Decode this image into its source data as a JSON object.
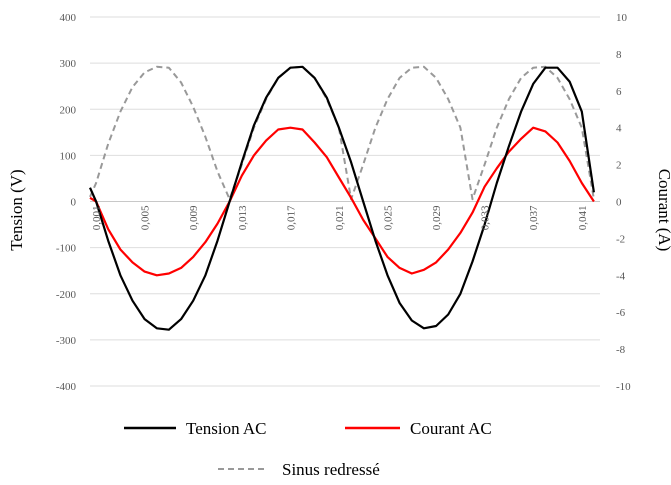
{
  "chart_data": {
    "type": "line",
    "title": "",
    "ylabel_left": "Tension (V)",
    "ylabel_right": "Courant (A)",
    "x_range": [
      0.0005,
      0.0425
    ],
    "x_ticks": [
      "0,001",
      "0,005",
      "0,009",
      "0,013",
      "0,017",
      "0,021",
      "0,025",
      "0,029",
      "0,033",
      "0,037",
      "0,041"
    ],
    "x_tick_values": [
      0.001,
      0.005,
      0.009,
      0.013,
      0.017,
      0.021,
      0.025,
      0.029,
      0.033,
      0.037,
      0.041
    ],
    "y_left": {
      "range": [
        -400,
        400
      ],
      "ticks": [
        400,
        300,
        200,
        100,
        0,
        -100,
        -200,
        -300,
        -400
      ]
    },
    "y_right": {
      "range": [
        -10,
        10
      ],
      "ticks": [
        10,
        8,
        6,
        4,
        2,
        0,
        -2,
        -4,
        -6,
        -8,
        -10
      ]
    },
    "grid": "horizontal",
    "legend_position": "bottom",
    "series": [
      {
        "name": "Tension AC",
        "axis": "left",
        "color": "#000000",
        "x": [
          0.0005,
          0.001,
          0.002,
          0.003,
          0.004,
          0.005,
          0.006,
          0.007,
          0.008,
          0.009,
          0.01,
          0.011,
          0.012,
          0.013,
          0.014,
          0.015,
          0.016,
          0.017,
          0.018,
          0.019,
          0.02,
          0.021,
          0.022,
          0.023,
          0.024,
          0.025,
          0.026,
          0.027,
          0.028,
          0.029,
          0.03,
          0.031,
          0.032,
          0.033,
          0.034,
          0.035,
          0.036,
          0.037,
          0.038,
          0.039,
          0.04,
          0.041,
          0.042
        ],
        "values": [
          30,
          0,
          -85,
          -160,
          -215,
          -255,
          -275,
          -278,
          -255,
          -215,
          -160,
          -85,
          0,
          85,
          165,
          225,
          268,
          290,
          292,
          268,
          225,
          160,
          85,
          0,
          -85,
          -160,
          -220,
          -258,
          -275,
          -270,
          -245,
          -200,
          -130,
          -50,
          40,
          120,
          195,
          255,
          290,
          290,
          260,
          195,
          20
        ]
      },
      {
        "name": "Courant AC",
        "axis": "right",
        "color": "#ff0000",
        "x": [
          0.0005,
          0.001,
          0.002,
          0.003,
          0.004,
          0.005,
          0.006,
          0.007,
          0.008,
          0.009,
          0.01,
          0.011,
          0.012,
          0.013,
          0.014,
          0.015,
          0.016,
          0.017,
          0.018,
          0.019,
          0.02,
          0.021,
          0.022,
          0.023,
          0.024,
          0.025,
          0.026,
          0.027,
          0.028,
          0.029,
          0.03,
          0.031,
          0.032,
          0.033,
          0.034,
          0.035,
          0.036,
          0.037,
          0.038,
          0.039,
          0.04,
          0.041,
          0.042
        ],
        "values": [
          0.2,
          0,
          -1.5,
          -2.6,
          -3.3,
          -3.8,
          -4.0,
          -3.9,
          -3.6,
          -3.0,
          -2.2,
          -1.2,
          0,
          1.4,
          2.5,
          3.3,
          3.9,
          4.0,
          3.9,
          3.2,
          2.4,
          1.3,
          0.2,
          -1.0,
          -2.0,
          -3.0,
          -3.6,
          -3.9,
          -3.7,
          -3.3,
          -2.6,
          -1.7,
          -0.6,
          0.8,
          1.8,
          2.7,
          3.4,
          4.0,
          3.8,
          3.2,
          2.2,
          1.0,
          0
        ]
      },
      {
        "name": "Sinus redressé",
        "axis": "left",
        "color": "#999999",
        "dashed": true,
        "x": [
          0.0005,
          0.001,
          0.002,
          0.003,
          0.004,
          0.005,
          0.006,
          0.007,
          0.008,
          0.009,
          0.01,
          0.011,
          0.012,
          0.013,
          0.014,
          0.015,
          0.016,
          0.017,
          0.018,
          0.019,
          0.02,
          0.021,
          0.022,
          0.023,
          0.024,
          0.025,
          0.026,
          0.027,
          0.028,
          0.029,
          0.03,
          0.031,
          0.032,
          0.033,
          0.034,
          0.035,
          0.036,
          0.037,
          0.038,
          0.039,
          0.04,
          0.041,
          0.042
        ],
        "values": [
          10,
          40,
          125,
          195,
          248,
          280,
          292,
          290,
          258,
          205,
          140,
          65,
          5,
          80,
          160,
          222,
          268,
          290,
          292,
          268,
          222,
          160,
          5,
          80,
          160,
          222,
          268,
          290,
          292,
          268,
          222,
          160,
          5,
          80,
          160,
          222,
          268,
          290,
          292,
          268,
          222,
          160,
          5
        ]
      }
    ]
  }
}
